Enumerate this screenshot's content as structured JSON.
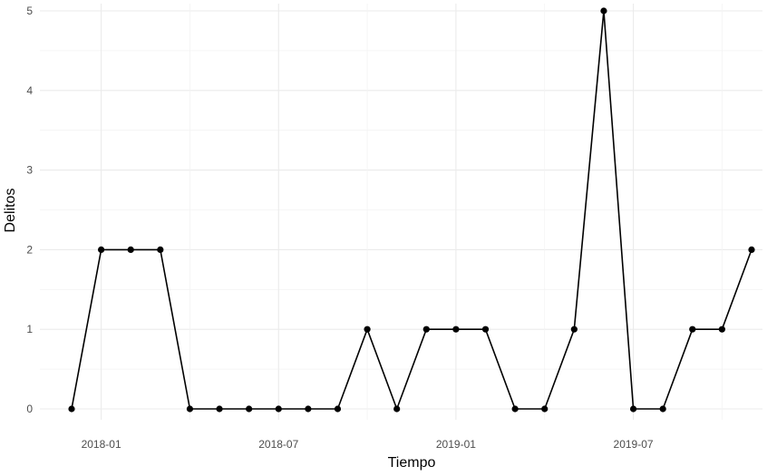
{
  "chart_data": {
    "type": "line",
    "xlabel": "Tiempo",
    "ylabel": "Delitos",
    "x_tick_labels": [
      "2018-01",
      "2018-07",
      "2019-01",
      "2019-07"
    ],
    "y_ticks": [
      0,
      1,
      2,
      3,
      4,
      5
    ],
    "ylim": [
      0,
      5
    ],
    "xlim": [
      "2017-12-01",
      "2019-11-01"
    ],
    "grid": true,
    "x": [
      "2017-12-01",
      "2018-01-01",
      "2018-02-01",
      "2018-03-01",
      "2018-04-01",
      "2018-05-01",
      "2018-06-01",
      "2018-07-01",
      "2018-08-01",
      "2018-09-01",
      "2018-10-01",
      "2018-11-01",
      "2018-12-01",
      "2019-01-01",
      "2019-02-01",
      "2019-03-01",
      "2019-04-01",
      "2019-05-01",
      "2019-06-01",
      "2019-07-01",
      "2019-08-01",
      "2019-09-01",
      "2019-10-01",
      "2019-11-01"
    ],
    "values": [
      0,
      2,
      2,
      2,
      0,
      0,
      0,
      0,
      0,
      0,
      1,
      0,
      1,
      1,
      1,
      0,
      0,
      1,
      5,
      0,
      0,
      1,
      1,
      2
    ],
    "colors": {
      "line": "#000000",
      "grid": "#ebebeb"
    }
  }
}
